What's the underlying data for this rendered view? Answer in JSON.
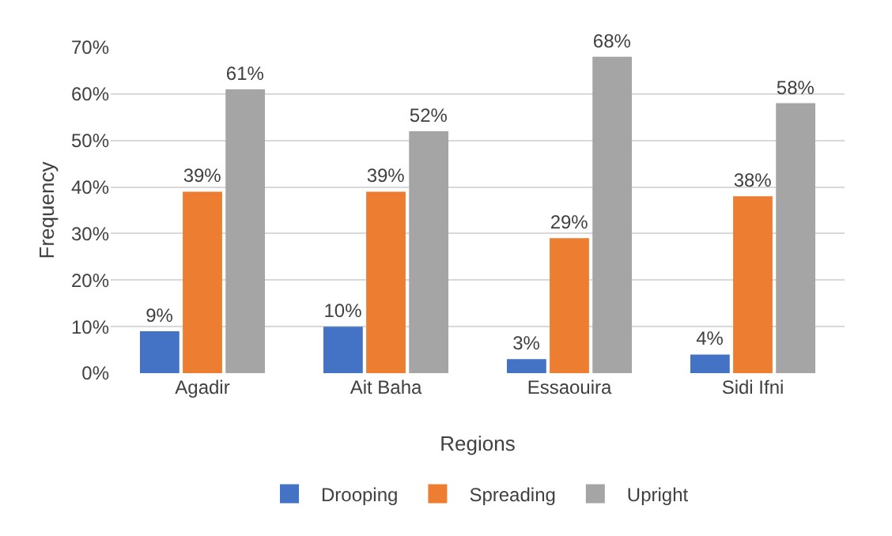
{
  "chart_data": {
    "type": "bar",
    "xlabel": "Regions",
    "ylabel": "Frequency",
    "categories": [
      "Agadir",
      "Ait Baha",
      "Essaouira",
      "Sidi Ifni"
    ],
    "series": [
      {
        "name": "Drooping",
        "color": "#4472c4",
        "values": [
          9,
          10,
          3,
          4
        ],
        "value_labels": [
          "9%",
          "10%",
          "3%",
          "4%"
        ]
      },
      {
        "name": "Spreading",
        "color": "#ed7d31",
        "values": [
          39,
          39,
          29,
          38
        ],
        "value_labels": [
          "39%",
          "39%",
          "29%",
          "38%"
        ]
      },
      {
        "name": "Upright",
        "color": "#a5a5a5",
        "values": [
          61,
          52,
          68,
          58
        ],
        "value_labels": [
          "61%",
          "52%",
          "68%",
          "58%"
        ]
      }
    ],
    "ylim": [
      0,
      70
    ],
    "yticks": [
      {
        "value": 0,
        "label": "0%"
      },
      {
        "value": 10,
        "label": "10%"
      },
      {
        "value": 20,
        "label": "20%"
      },
      {
        "value": 30,
        "label": "30%"
      },
      {
        "value": 40,
        "label": "40%"
      },
      {
        "value": 50,
        "label": "50%"
      },
      {
        "value": 60,
        "label": "60%"
      },
      {
        "value": 70,
        "label": "70%"
      }
    ],
    "grid": true,
    "legend": "bottom"
  }
}
